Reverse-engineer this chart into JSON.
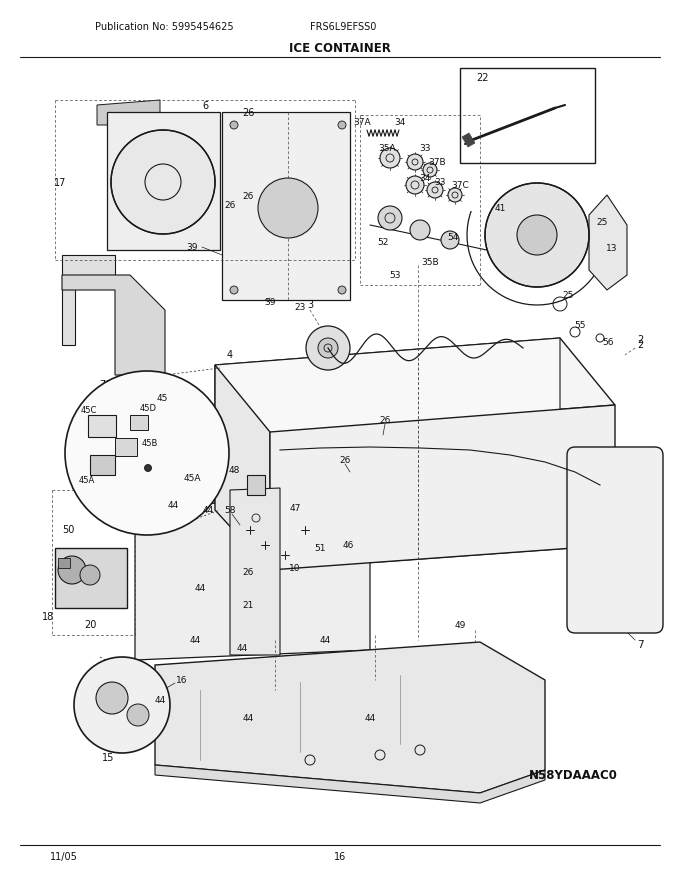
{
  "pub_no": "Publication No: 5995454625",
  "model": "FRS6L9EFSS0",
  "title": "ICE CONTAINER",
  "diagram_code": "N58YDAAAC0",
  "date": "11/05",
  "page": "16",
  "bg_color": "#ffffff",
  "lc": "#1a1a1a",
  "fig_width": 6.8,
  "fig_height": 8.8,
  "dpi": 100
}
